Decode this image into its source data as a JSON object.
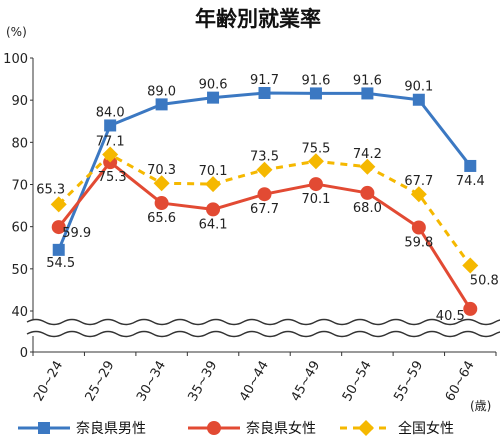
{
  "chart_data": {
    "type": "line",
    "title": "年齢別就業率",
    "ylabel_unit": "(%)",
    "xlabel_unit": "(歳)",
    "ylim": [
      0,
      100
    ],
    "y_ticks": [
      "0",
      "40",
      "50",
      "60",
      "70",
      "80",
      "90",
      "100"
    ],
    "y_axis_break": "between 0 and 40",
    "grid": false,
    "legend_position": "bottom",
    "categories": [
      "20~24",
      "25~29",
      "30~34",
      "35~39",
      "40~44",
      "45~49",
      "50~54",
      "55~59",
      "60~64"
    ],
    "series": [
      {
        "name": "奈良県男性",
        "color": "#3b78c2",
        "marker": "square",
        "line_style": "solid",
        "values": [
          54.5,
          84.0,
          89.0,
          90.6,
          91.7,
          91.6,
          91.6,
          90.1,
          74.4
        ],
        "labels": [
          "54.5",
          "84.0",
          "89.0",
          "90.6",
          "91.7",
          "91.6",
          "91.6",
          "90.1",
          "74.4"
        ]
      },
      {
        "name": "奈良県女性",
        "color": "#e24a33",
        "marker": "circle",
        "line_style": "solid",
        "values": [
          59.9,
          75.3,
          65.6,
          64.1,
          67.7,
          70.1,
          68.0,
          59.8,
          40.5
        ],
        "labels": [
          "59.9",
          "75.3",
          "65.6",
          "64.1",
          "67.7",
          "70.1",
          "68.0",
          "59.8",
          "40.5"
        ]
      },
      {
        "name": "全国女性",
        "color": "#f5b800",
        "marker": "diamond",
        "line_style": "dashed",
        "values": [
          65.3,
          77.1,
          70.3,
          70.1,
          73.5,
          75.5,
          74.2,
          67.7,
          50.8
        ],
        "labels": [
          "65.3",
          "77.1",
          "70.3",
          "70.1",
          "73.5",
          "75.5",
          "74.2",
          "67.7",
          "50.8"
        ]
      }
    ]
  }
}
